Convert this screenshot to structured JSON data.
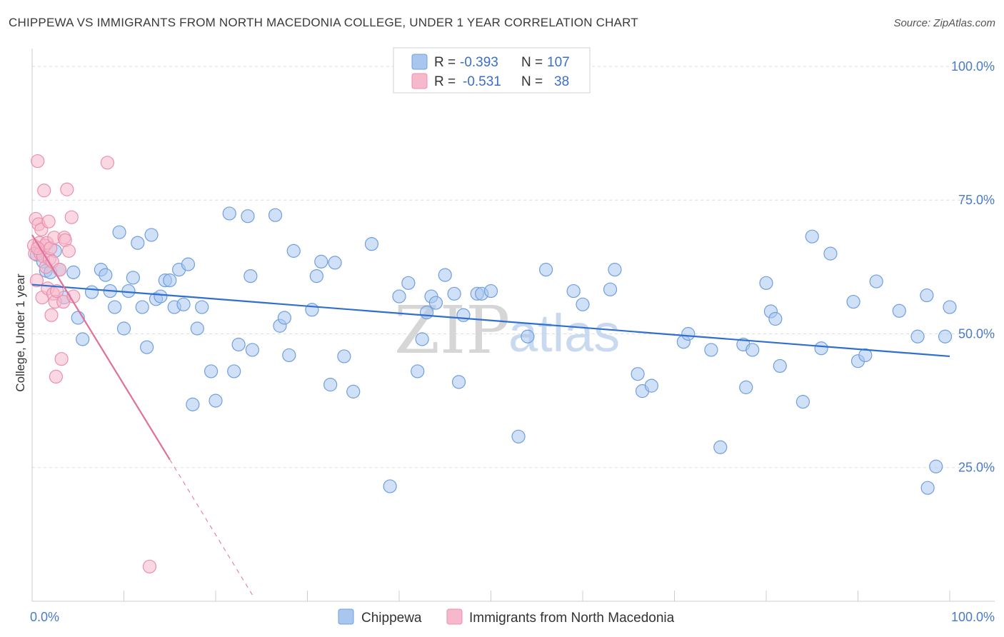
{
  "title": "CHIPPEWA VS IMMIGRANTS FROM NORTH MACEDONIA COLLEGE, UNDER 1 YEAR CORRELATION CHART",
  "source": "Source: ZipAtlas.com",
  "watermark": {
    "zip": "ZIP",
    "atlas": "atlas"
  },
  "legend": {
    "rows": [
      {
        "r_label": "R =",
        "r_value": "-0.393",
        "n_label": "N =",
        "n_value": "107"
      },
      {
        "r_label": "R =",
        "r_value": "-0.531",
        "n_label": "N =",
        "n_value": "38"
      }
    ]
  },
  "colors": {
    "chippewa_fill": "#a9c6ef",
    "chippewa_stroke": "#6f9fe0",
    "chippewa_line": "#2f6fd0",
    "macedonia_fill": "#f6b8cb",
    "macedonia_stroke": "#ec8fae",
    "macedonia_line": "#e0709a",
    "grid": "#dddddd",
    "axis": "#cccccc"
  },
  "chart_data": {
    "type": "scatter",
    "ylabel": "College, Under 1 year",
    "x_tick_labels": [
      "0.0%",
      "100.0%"
    ],
    "y_tick_labels": [
      "100.0%",
      "75.0%",
      "50.0%",
      "25.0%"
    ],
    "y_ticks": [
      100,
      75,
      50,
      25
    ],
    "xlim": [
      0,
      100
    ],
    "ylim": [
      0,
      102
    ],
    "grid": "horizontal dashed",
    "legend_placement": "top-center",
    "series": [
      {
        "name": "Chippewa",
        "r": -0.393,
        "n": 107,
        "trend": {
          "x": [
            0,
            100
          ],
          "y": [
            59.2,
            45.8
          ]
        },
        "points": [
          [
            0.5,
            64.8
          ],
          [
            0.8,
            65.5
          ],
          [
            1.2,
            63.5
          ],
          [
            1.5,
            61.8
          ],
          [
            2.0,
            61.5
          ],
          [
            2.5,
            65.5
          ],
          [
            3.0,
            62.0
          ],
          [
            3.5,
            56.8
          ],
          [
            4.5,
            61.5
          ],
          [
            5.0,
            53.0
          ],
          [
            5.5,
            49.0
          ],
          [
            6.5,
            57.8
          ],
          [
            7.5,
            62.0
          ],
          [
            8.0,
            61.0
          ],
          [
            8.5,
            58.0
          ],
          [
            9.0,
            55.0
          ],
          [
            9.5,
            69.0
          ],
          [
            10.0,
            51.0
          ],
          [
            10.5,
            58.0
          ],
          [
            11.0,
            60.5
          ],
          [
            11.5,
            67.0
          ],
          [
            12.0,
            55.0
          ],
          [
            12.5,
            47.5
          ],
          [
            13.0,
            68.5
          ],
          [
            13.5,
            56.5
          ],
          [
            14.0,
            57.0
          ],
          [
            14.5,
            60.0
          ],
          [
            15.0,
            60.0
          ],
          [
            15.5,
            55.0
          ],
          [
            16.0,
            62.0
          ],
          [
            16.5,
            55.5
          ],
          [
            17.0,
            63.0
          ],
          [
            17.5,
            36.8
          ],
          [
            18.0,
            51.0
          ],
          [
            18.5,
            55.0
          ],
          [
            19.5,
            43.0
          ],
          [
            20.0,
            37.5
          ],
          [
            21.5,
            72.5
          ],
          [
            22.0,
            43.0
          ],
          [
            22.5,
            48.0
          ],
          [
            23.5,
            72.0
          ],
          [
            23.8,
            60.8
          ],
          [
            24.0,
            47.0
          ],
          [
            26.5,
            72.2
          ],
          [
            27.0,
            51.5
          ],
          [
            27.5,
            53.0
          ],
          [
            28.0,
            46.0
          ],
          [
            28.5,
            65.5
          ],
          [
            30.5,
            54.5
          ],
          [
            31.0,
            60.8
          ],
          [
            31.5,
            63.5
          ],
          [
            32.5,
            40.5
          ],
          [
            33.0,
            63.3
          ],
          [
            34.0,
            45.8
          ],
          [
            35.0,
            39.2
          ],
          [
            37.0,
            66.8
          ],
          [
            39.0,
            21.5
          ],
          [
            40.0,
            57.0
          ],
          [
            41.0,
            59.5
          ],
          [
            42.0,
            43.0
          ],
          [
            42.5,
            49.0
          ],
          [
            43.0,
            54.0
          ],
          [
            43.5,
            57.0
          ],
          [
            44.0,
            55.8
          ],
          [
            45.0,
            61.0
          ],
          [
            46.0,
            57.5
          ],
          [
            46.5,
            41.0
          ],
          [
            47.0,
            53.5
          ],
          [
            48.5,
            57.5
          ],
          [
            49.0,
            57.5
          ],
          [
            50.0,
            58.0
          ],
          [
            53.0,
            30.8
          ],
          [
            54.0,
            49.5
          ],
          [
            56.0,
            62.0
          ],
          [
            59.0,
            58.0
          ],
          [
            60.0,
            55.5
          ],
          [
            63.0,
            58.3
          ],
          [
            63.5,
            62.0
          ],
          [
            66.0,
            42.5
          ],
          [
            66.5,
            39.3
          ],
          [
            67.5,
            40.3
          ],
          [
            71.0,
            48.5
          ],
          [
            71.5,
            50.0
          ],
          [
            74.0,
            47.0
          ],
          [
            75.0,
            28.8
          ],
          [
            77.5,
            48.0
          ],
          [
            77.8,
            40.0
          ],
          [
            78.5,
            47.0
          ],
          [
            80.0,
            59.5
          ],
          [
            80.5,
            54.2
          ],
          [
            81.0,
            52.8
          ],
          [
            81.5,
            44.0
          ],
          [
            84.0,
            37.3
          ],
          [
            85.0,
            68.2
          ],
          [
            86.0,
            47.3
          ],
          [
            87.0,
            65.0
          ],
          [
            89.5,
            56.0
          ],
          [
            90.0,
            44.9
          ],
          [
            90.8,
            46.0
          ],
          [
            92.0,
            59.8
          ],
          [
            94.5,
            54.3
          ],
          [
            96.5,
            49.5
          ],
          [
            97.5,
            57.2
          ],
          [
            97.6,
            21.2
          ],
          [
            98.5,
            25.2
          ],
          [
            99.5,
            49.5
          ],
          [
            100.0,
            55.0
          ]
        ]
      },
      {
        "name": "Immigrants from North Macedonia",
        "r": -0.531,
        "n": 38,
        "trend": {
          "x": [
            0,
            15,
            24.0
          ],
          "y": [
            68.5,
            26.5,
            1.2
          ]
        },
        "points": [
          [
            0.2,
            66.5
          ],
          [
            0.3,
            65.0
          ],
          [
            0.4,
            71.5
          ],
          [
            0.5,
            60.0
          ],
          [
            0.6,
            82.3
          ],
          [
            0.7,
            70.5
          ],
          [
            0.8,
            67.0
          ],
          [
            0.9,
            65.0
          ],
          [
            1.0,
            69.5
          ],
          [
            1.1,
            56.8
          ],
          [
            1.2,
            64.5
          ],
          [
            1.3,
            76.8
          ],
          [
            1.4,
            66.5
          ],
          [
            1.5,
            62.5
          ],
          [
            1.6,
            67.0
          ],
          [
            1.7,
            58.5
          ],
          [
            1.8,
            71.0
          ],
          [
            1.9,
            64.0
          ],
          [
            2.0,
            66.0
          ],
          [
            2.1,
            53.5
          ],
          [
            2.2,
            63.5
          ],
          [
            2.3,
            57.5
          ],
          [
            2.4,
            68.0
          ],
          [
            2.5,
            56.0
          ],
          [
            2.6,
            42.0
          ],
          [
            2.7,
            58.0
          ],
          [
            3.0,
            62.0
          ],
          [
            3.2,
            45.3
          ],
          [
            3.4,
            56.0
          ],
          [
            3.5,
            68.0
          ],
          [
            3.6,
            67.5
          ],
          [
            3.8,
            77.0
          ],
          [
            4.0,
            65.5
          ],
          [
            4.3,
            71.8
          ],
          [
            4.5,
            57.0
          ],
          [
            8.2,
            82.0
          ],
          [
            12.8,
            6.5
          ],
          [
            0.6,
            66.0
          ]
        ]
      }
    ]
  }
}
